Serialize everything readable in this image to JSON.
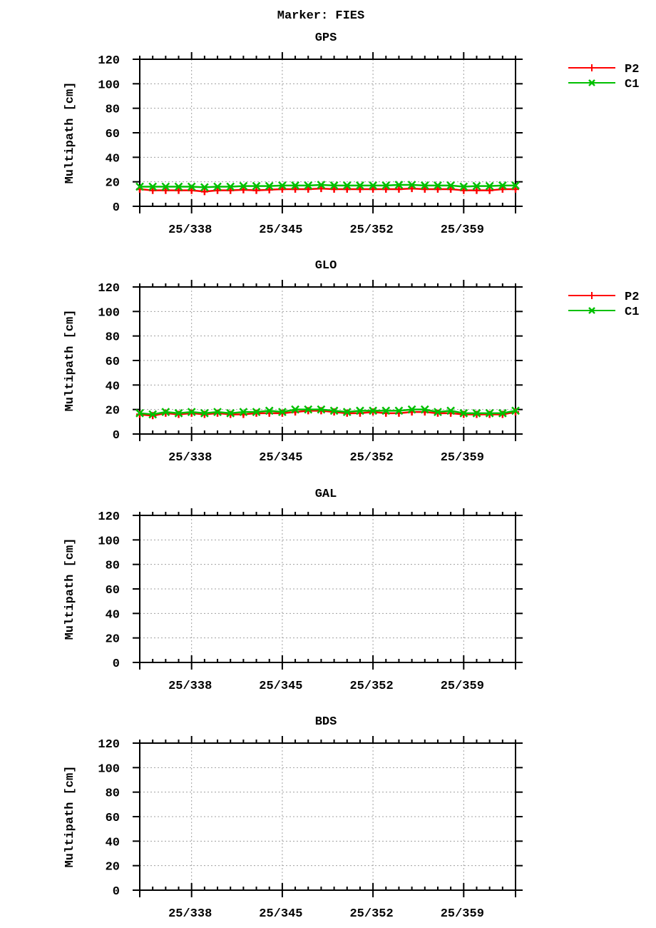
{
  "page": {
    "title": "Marker: FIES"
  },
  "colors": {
    "P2": "#ff0000",
    "C1": "#00c000",
    "axis": "#000000",
    "grid": "#a0a0a0"
  },
  "chart_data": [
    {
      "type": "line",
      "title": "GPS",
      "xlabel": "",
      "ylabel": "Multipath [cm]",
      "ylim": [
        0,
        120
      ],
      "yticks": [
        0,
        20,
        40,
        60,
        80,
        100,
        120
      ],
      "xlim": [
        334,
        363
      ],
      "xticks": [
        338,
        345,
        352,
        359
      ],
      "xtick_labels": [
        "25/338",
        "25/345",
        "25/352",
        "25/359"
      ],
      "grid": true,
      "legend_position": "right-outside",
      "x": [
        334,
        335,
        336,
        337,
        338,
        339,
        340,
        341,
        342,
        343,
        344,
        345,
        346,
        347,
        348,
        349,
        350,
        351,
        352,
        353,
        354,
        355,
        356,
        357,
        358,
        359,
        360,
        361,
        362,
        363
      ],
      "series": [
        {
          "name": "P2",
          "marker": "+",
          "values": [
            14,
            13,
            13,
            13,
            13,
            12,
            13,
            13,
            13.5,
            13,
            13.5,
            14,
            14,
            14,
            14.5,
            14,
            14,
            14,
            14,
            14,
            14,
            14.5,
            14,
            14,
            14,
            13,
            13,
            13,
            14,
            14
          ]
        },
        {
          "name": "C1",
          "marker": "x",
          "values": [
            16,
            16,
            16,
            16,
            16,
            15.5,
            16,
            16,
            16.5,
            16.5,
            16.5,
            17,
            17,
            17,
            17.5,
            17,
            17,
            17,
            17,
            17,
            17.5,
            17.5,
            17,
            17,
            17,
            16,
            16.5,
            16.5,
            17,
            17
          ]
        }
      ]
    },
    {
      "type": "line",
      "title": "GLO",
      "xlabel": "",
      "ylabel": "Multipath [cm]",
      "ylim": [
        0,
        120
      ],
      "yticks": [
        0,
        20,
        40,
        60,
        80,
        100,
        120
      ],
      "xlim": [
        334,
        363
      ],
      "xticks": [
        338,
        345,
        352,
        359
      ],
      "xtick_labels": [
        "25/338",
        "25/345",
        "25/352",
        "25/359"
      ],
      "grid": true,
      "legend_position": "right-outside",
      "x": [
        334,
        335,
        336,
        337,
        338,
        339,
        340,
        341,
        342,
        343,
        344,
        345,
        346,
        347,
        348,
        349,
        350,
        351,
        352,
        353,
        354,
        355,
        356,
        357,
        358,
        359,
        360,
        361,
        362,
        363
      ],
      "series": [
        {
          "name": "P2",
          "marker": "+",
          "values": [
            16,
            15,
            17,
            16,
            17,
            16,
            17,
            16,
            16,
            17,
            17,
            17,
            18,
            19,
            19,
            18,
            17,
            17,
            18,
            17,
            17,
            18,
            18,
            17,
            17,
            16,
            16,
            16,
            16,
            18
          ]
        },
        {
          "name": "C1",
          "marker": "x",
          "values": [
            17,
            16,
            18,
            17,
            18,
            17,
            18,
            17,
            18,
            18,
            19,
            18,
            20,
            20,
            20,
            19,
            18,
            19,
            19,
            19,
            19,
            20,
            20,
            18,
            19,
            17,
            17,
            17,
            17,
            19
          ]
        }
      ]
    },
    {
      "type": "line",
      "title": "GAL",
      "xlabel": "",
      "ylabel": "Multipath [cm]",
      "ylim": [
        0,
        120
      ],
      "yticks": [
        0,
        20,
        40,
        60,
        80,
        100,
        120
      ],
      "xlim": [
        334,
        363
      ],
      "xticks": [
        338,
        345,
        352,
        359
      ],
      "xtick_labels": [
        "25/338",
        "25/345",
        "25/352",
        "25/359"
      ],
      "grid": true,
      "x": [],
      "series": []
    },
    {
      "type": "line",
      "title": "BDS",
      "xlabel": "",
      "ylabel": "Multipath [cm]",
      "ylim": [
        0,
        120
      ],
      "yticks": [
        0,
        20,
        40,
        60,
        80,
        100,
        120
      ],
      "xlim": [
        334,
        363
      ],
      "xticks": [
        338,
        345,
        352,
        359
      ],
      "xtick_labels": [
        "25/338",
        "25/345",
        "25/352",
        "25/359"
      ],
      "grid": true,
      "x": [],
      "series": []
    }
  ]
}
